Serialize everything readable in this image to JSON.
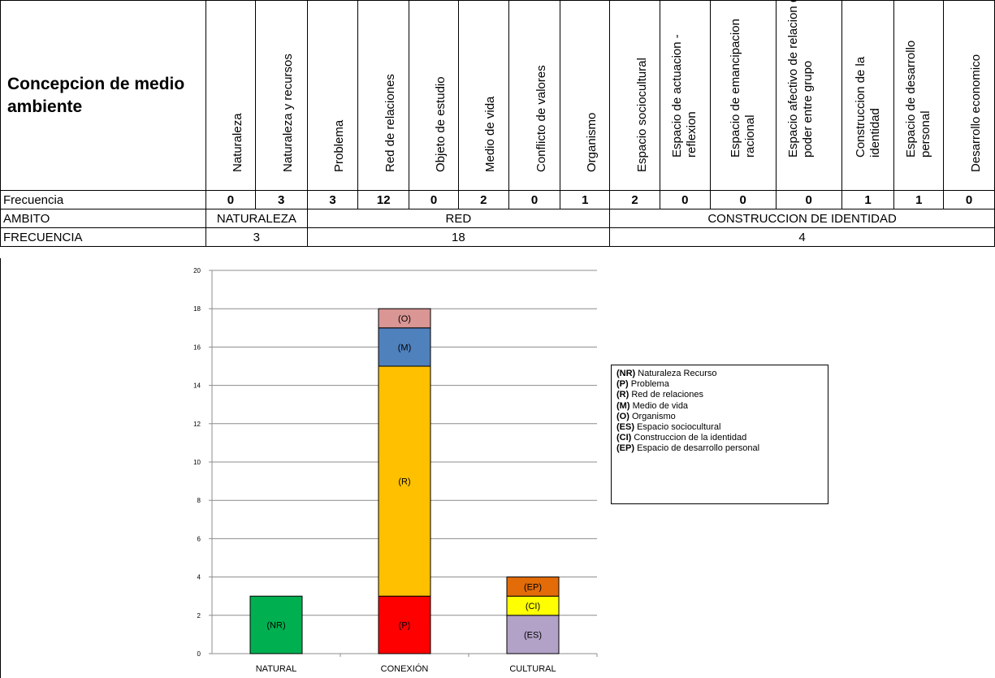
{
  "table": {
    "title": "Concepcion de medio ambiente",
    "headers": [
      "Naturaleza",
      "Naturaleza y recursos",
      "Problema",
      "Red de relaciones",
      "Objeto de estudio",
      "Medio de vida",
      "Conflicto de valores",
      "Organismo",
      "Espacio sociocultural",
      "Espacio de actuacion - reflexion",
      "Espacio de emancipacion racional",
      "Espacio afectivo de relacion de poder entre grupo",
      "Construccion de la identidad",
      "Espacio de desarrollo personal",
      "Desarrollo economico"
    ],
    "freq_label": "Frecuencia",
    "freq_values": [
      "0",
      "3",
      "3",
      "12",
      "0",
      "2",
      "0",
      "1",
      "2",
      "0",
      "0",
      "0",
      "1",
      "1",
      "0"
    ],
    "ambito_label": "AMBITO",
    "ambitos": [
      "NATURALEZA",
      "RED",
      "CONSTRUCCION DE IDENTIDAD"
    ],
    "frecuencia_label": "FRECUENCIA",
    "ambito_freqs": [
      "3",
      "18",
      "4"
    ]
  },
  "legend": [
    {
      "code": "(NR)",
      "text": "Naturaleza Recurso"
    },
    {
      "code": "(P)",
      "text": "Problema"
    },
    {
      "code": "(R)",
      "text": "Red de relaciones"
    },
    {
      "code": "(M)",
      "text": "Medio de vida"
    },
    {
      "code": "(O)",
      "text": "Organismo"
    },
    {
      "code": "(ES)",
      "text": "Espacio sociocultural"
    },
    {
      "code": "(CI)",
      "text": "Construccion de la identidad"
    },
    {
      "code": "(EP)",
      "text": "Espacio de desarrollo personal"
    }
  ],
  "chart_data": {
    "type": "bar",
    "stacked": true,
    "categories": [
      "NATURAL",
      "CONEXIÓN",
      "CULTURAL"
    ],
    "ylim": [
      0,
      20
    ],
    "yticks": [
      0,
      2,
      4,
      6,
      8,
      10,
      12,
      14,
      16,
      18,
      20
    ],
    "grid": true,
    "legend_position": "right",
    "segments": [
      {
        "category": "NATURAL",
        "label": "(NR)",
        "value": 3,
        "color": "#00b050"
      },
      {
        "category": "CONEXIÓN",
        "label": "(P)",
        "value": 3,
        "color": "#ff0000"
      },
      {
        "category": "CONEXIÓN",
        "label": "(R)",
        "value": 12,
        "color": "#ffc000"
      },
      {
        "category": "CONEXIÓN",
        "label": "(M)",
        "value": 2,
        "color": "#4f81bd"
      },
      {
        "category": "CONEXIÓN",
        "label": "(O)",
        "value": 1,
        "color": "#d99694"
      },
      {
        "category": "CULTURAL",
        "label": "(ES)",
        "value": 2,
        "color": "#b3a2c7"
      },
      {
        "category": "CULTURAL",
        "label": "(CI)",
        "value": 1,
        "color": "#ffff00"
      },
      {
        "category": "CULTURAL",
        "label": "(EP)",
        "value": 1,
        "color": "#e36c09"
      }
    ]
  }
}
